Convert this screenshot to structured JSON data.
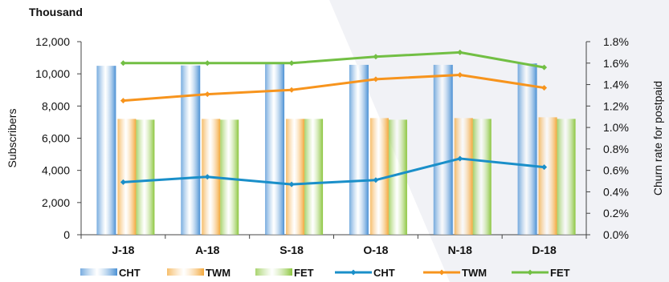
{
  "chart_data": {
    "type": "bar",
    "title": "",
    "unit_label": "Thousand",
    "categories": [
      "J-18",
      "A-18",
      "S-18",
      "O-18",
      "N-18",
      "D-18"
    ],
    "ylabel": "Subscribers",
    "ylim": [
      0,
      12000
    ],
    "yticks": [
      "0",
      "2,000",
      "4,000",
      "6,000",
      "8,000",
      "10,000",
      "12,000"
    ],
    "y2label": "Churn rate for postpaid",
    "y2lim": [
      0,
      1.8
    ],
    "y2ticks": [
      "0.0%",
      "0.2%",
      "0.4%",
      "0.6%",
      "0.8%",
      "1.0%",
      "1.2%",
      "1.4%",
      "1.6%",
      "1.8%"
    ],
    "bar_series": [
      {
        "name": "CHT",
        "color": "#4a90d4",
        "values": [
          10500,
          10520,
          10650,
          10560,
          10560,
          10650
        ]
      },
      {
        "name": "TWM",
        "color": "#f3a83b",
        "values": [
          7200,
          7200,
          7200,
          7250,
          7250,
          7300
        ]
      },
      {
        "name": "FET",
        "color": "#8cc63f",
        "values": [
          7150,
          7150,
          7200,
          7150,
          7200,
          7200
        ]
      }
    ],
    "line_series": [
      {
        "name": "CHT",
        "color": "#1a8fc9",
        "values": [
          0.49,
          0.54,
          0.47,
          0.51,
          0.71,
          0.63
        ]
      },
      {
        "name": "TWM",
        "color": "#f7941d",
        "values": [
          1.25,
          1.31,
          1.35,
          1.45,
          1.49,
          1.37
        ]
      },
      {
        "name": "FET",
        "color": "#72bf44",
        "values": [
          1.6,
          1.6,
          1.6,
          1.66,
          1.7,
          1.56
        ]
      }
    ],
    "grid": false,
    "legend_position": "bottom"
  }
}
